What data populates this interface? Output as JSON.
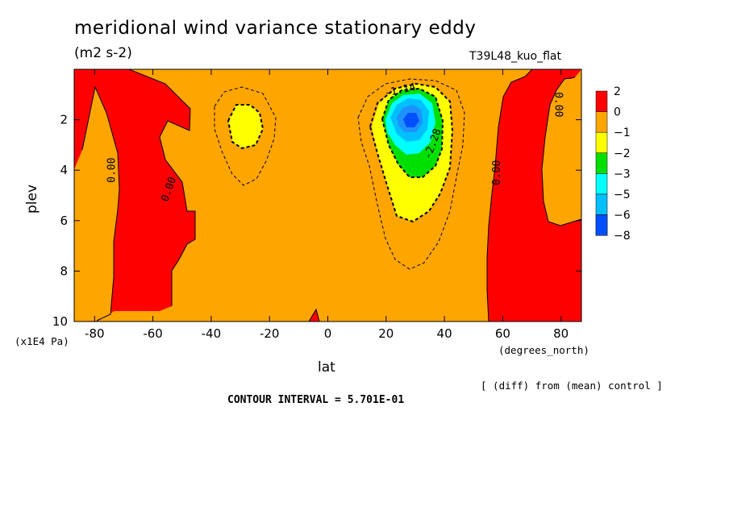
{
  "chart_data": {
    "type": "heatmap",
    "title": "meridional wind variance  stationary eddy",
    "units": "(m2 s-2)",
    "run_label": "T39L48_kuo_flat",
    "xlabel": "lat",
    "x_unit": "(degrees_north)",
    "ylabel": "plev",
    "y_unit": "(x1E4 Pa)",
    "xlim": [
      -87,
      87
    ],
    "ylim": [
      10,
      0
    ],
    "x_ticks": [
      -80,
      -60,
      -40,
      -20,
      0,
      20,
      40,
      60,
      80
    ],
    "y_ticks": [
      2,
      4,
      6,
      8,
      10
    ],
    "contour_labels": [
      "0.00",
      "0.00",
      "0.00",
      "0.00",
      "-1.14",
      "-2.28"
    ],
    "colorbar": {
      "levels": [
        "2",
        "0",
        "−1",
        "−2",
        "−3",
        "−5",
        "−6",
        "−8"
      ],
      "colors": [
        "#ff0000",
        "#ffa500",
        "#ffff00",
        "#00e000",
        "#00ffff",
        "#00bfff",
        "#1e90ff",
        "#0050ff"
      ]
    },
    "annotation": "[ (diff) from (mean) control ]",
    "contour_interval": "CONTOUR INTERVAL = 5.701E-01",
    "features": [
      {
        "name": "negative minimum",
        "lat": 29,
        "plev": 2.2,
        "approx_value": -8
      },
      {
        "name": "weak negative",
        "lat": -29,
        "plev": 2.3,
        "approx_value": -1.3
      },
      {
        "name": "positive band SH",
        "lat_range": [
          -87,
          -55
        ],
        "approx_value": 1
      },
      {
        "name": "positive band NH",
        "lat_range": [
          60,
          87
        ],
        "approx_value": 1
      }
    ]
  }
}
